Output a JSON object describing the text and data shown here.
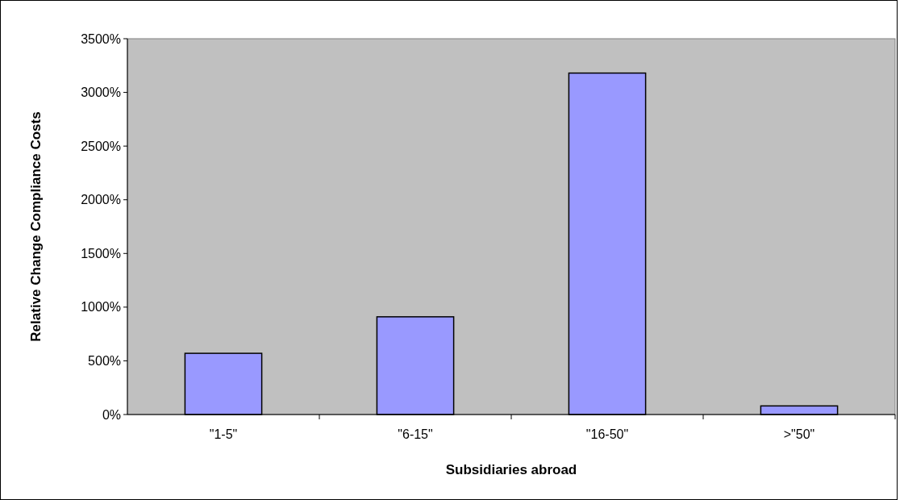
{
  "chart_data": {
    "type": "bar",
    "xlabel": "Subsidiaries abroad",
    "ylabel": "Relative Change Compliance Costs",
    "categories": [
      "\"1-5\"",
      "\"6-15\"",
      "\"16-50\"",
      ">\"50\""
    ],
    "values": [
      570,
      910,
      3180,
      80
    ],
    "color": "#9999ff",
    "ylim": [
      0,
      3500
    ],
    "yticks": [
      {
        "value": 0,
        "label": "0%"
      },
      {
        "value": 500,
        "label": "500%"
      },
      {
        "value": 1000,
        "label": "1000%"
      },
      {
        "value": 1500,
        "label": "1500%"
      },
      {
        "value": 2000,
        "label": "2000%"
      },
      {
        "value": 2500,
        "label": "2500%"
      },
      {
        "value": 3000,
        "label": "3000%"
      },
      {
        "value": 3500,
        "label": "3500%"
      }
    ],
    "grid": false
  }
}
